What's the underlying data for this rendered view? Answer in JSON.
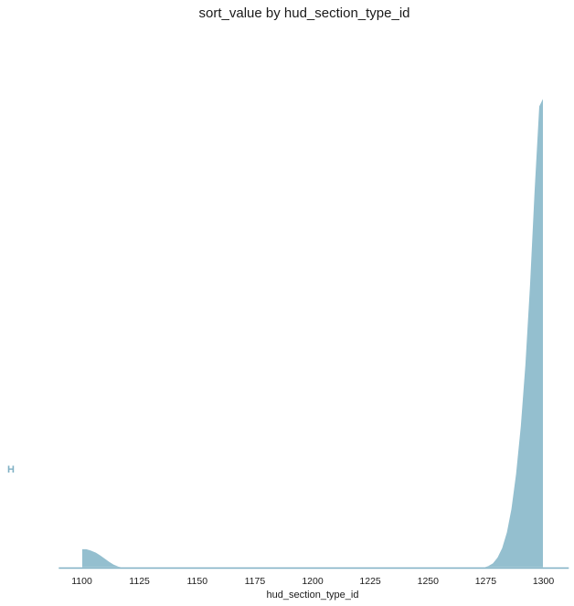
{
  "chart_data": {
    "type": "area",
    "title": "sort_value by hud_section_type_id",
    "xlabel": "hud_section_type_id",
    "ylabel": "",
    "xlim": [
      1090,
      1311
    ],
    "ylim": [
      0,
      1
    ],
    "x_ticks": [
      1100,
      1125,
      1150,
      1175,
      1200,
      1225,
      1250,
      1275,
      1300
    ],
    "x_tick_labels": [
      "1100",
      "1125",
      "1150",
      "1175",
      "1200",
      "1225",
      "1250",
      "1275",
      "1300"
    ],
    "grid": false,
    "legend": "none",
    "colors": {
      "fill": "#94bfcf",
      "edge": "#ffffff",
      "baseline": "#7fb0c4",
      "row_label": "#7fb0c4",
      "text": "#1a1a1a"
    },
    "series": [
      {
        "name": "H",
        "x": [
          1100,
          1102,
          1104,
          1106,
          1108,
          1110,
          1112,
          1114,
          1116,
          1118,
          1120,
          1122,
          1124,
          1200,
          1270,
          1274,
          1276,
          1278,
          1280,
          1282,
          1284,
          1286,
          1288,
          1290,
          1292,
          1294,
          1296,
          1298,
          1300
        ],
        "y": [
          0.04,
          0.04,
          0.037,
          0.033,
          0.027,
          0.02,
          0.013,
          0.007,
          0.003,
          0.001,
          0.0,
          0.0,
          0.0,
          0.0,
          0.0,
          0.001,
          0.004,
          0.01,
          0.022,
          0.042,
          0.075,
          0.125,
          0.2,
          0.3,
          0.43,
          0.6,
          0.8,
          0.98,
          1.0
        ]
      }
    ]
  }
}
